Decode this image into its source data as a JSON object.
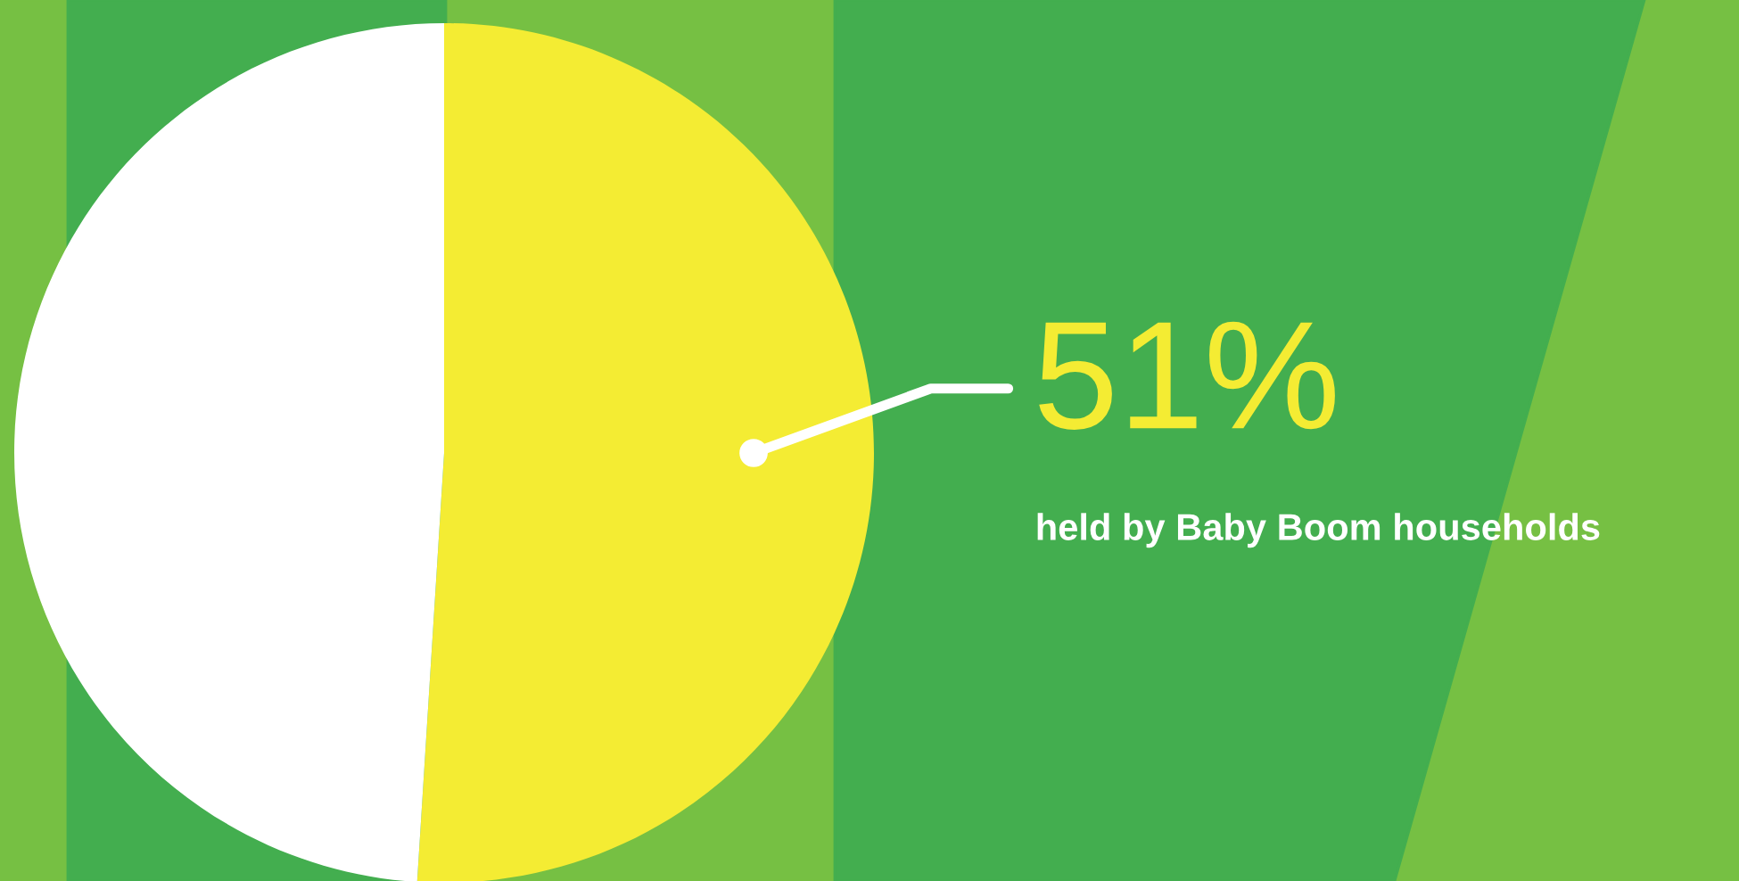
{
  "chart_data": {
    "type": "pie",
    "categories": [
      null,
      null
    ],
    "values": [
      51,
      49
    ],
    "colors": [
      "#f4ec33",
      "#ffffff"
    ],
    "value_labels": [
      "51%",
      null
    ],
    "annotations": [
      "held by Baby Boom households"
    ]
  }
}
